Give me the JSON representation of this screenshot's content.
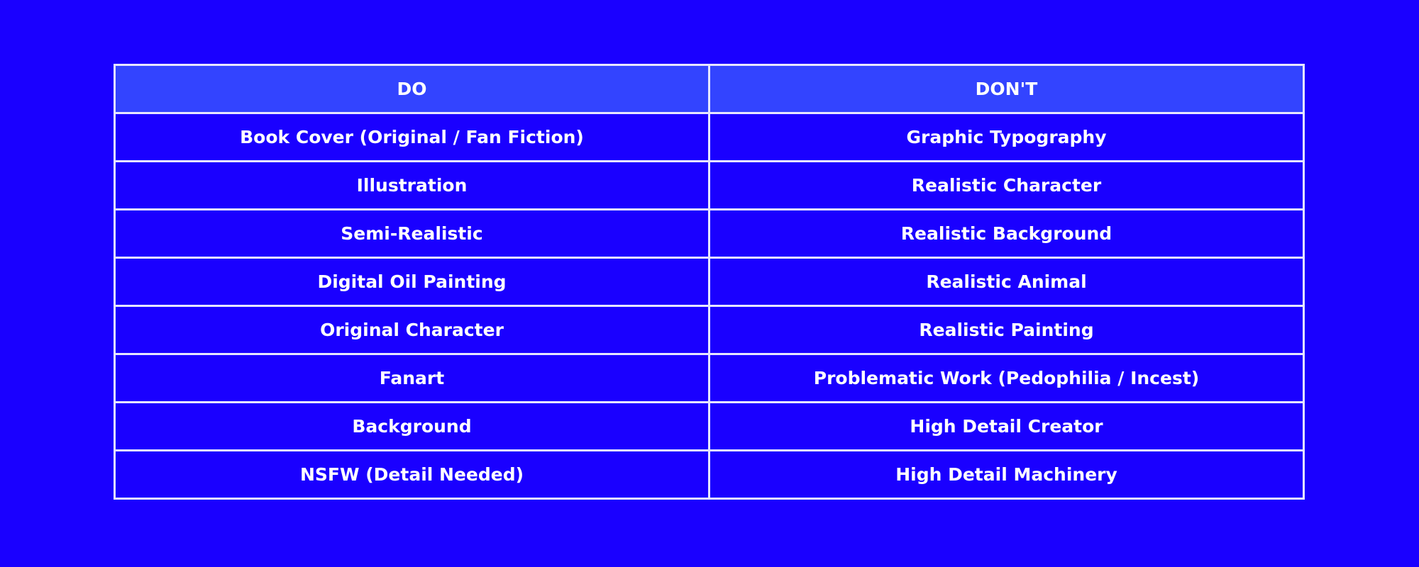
{
  "colors": {
    "background": "#1a00ff",
    "header": "#3344ff",
    "border": "#e6e6ff",
    "text": "#ffffff"
  },
  "table": {
    "headers": [
      "DO",
      "DON'T"
    ],
    "rows": [
      [
        "Book Cover (Original / Fan Fiction)",
        "Graphic Typography"
      ],
      [
        "Illustration",
        "Realistic Character"
      ],
      [
        "Semi-Realistic",
        "Realistic Background"
      ],
      [
        "Digital Oil Painting",
        "Realistic Animal"
      ],
      [
        "Original Character",
        "Realistic Painting"
      ],
      [
        "Fanart",
        "Problematic Work (Pedophilia / Incest)"
      ],
      [
        "Background",
        "High Detail Creator"
      ],
      [
        "NSFW (Detail Needed)",
        "High Detail Machinery"
      ]
    ]
  }
}
